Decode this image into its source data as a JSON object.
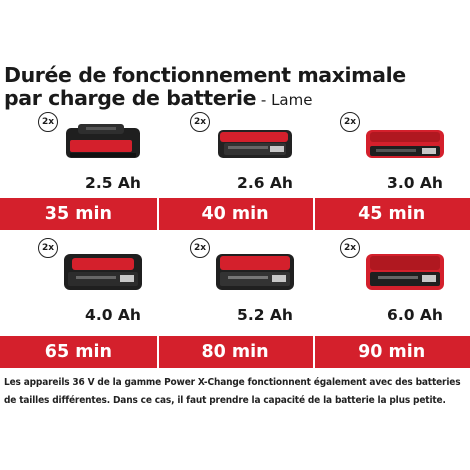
{
  "title": {
    "line1": "Durée de fonctionnement maximale",
    "line2": "par charge de batterie",
    "suffix": " - Lame"
  },
  "colors": {
    "accent": "#d4202c",
    "battery_body": "#222222",
    "battery_accent": "#d4202c"
  },
  "rows": [
    {
      "batteries": [
        {
          "qty": "2x",
          "capacity": "2.5 Ah",
          "icon": "battery-2-5ah-icon"
        },
        {
          "qty": "2x",
          "capacity": "2.6 Ah",
          "icon": "battery-2-6ah-icon"
        },
        {
          "qty": "2x",
          "capacity": "3.0 Ah",
          "icon": "battery-3-0ah-icon"
        }
      ],
      "runtimes": [
        "35 min",
        "40 min",
        "45 min"
      ]
    },
    {
      "batteries": [
        {
          "qty": "2x",
          "capacity": "4.0 Ah",
          "icon": "battery-4-0ah-icon"
        },
        {
          "qty": "2x",
          "capacity": "5.2 Ah",
          "icon": "battery-5-2ah-icon"
        },
        {
          "qty": "2x",
          "capacity": "6.0 Ah",
          "icon": "battery-6-0ah-icon"
        }
      ],
      "runtimes": [
        "65 min",
        "80 min",
        "90 min"
      ]
    }
  ],
  "note": {
    "line1": "Les appareils 36 V de la gamme Power X-Change fonctionnent également avec des batteries",
    "line2": "de tailles différentes. Dans ce cas, il faut prendre la capacité de la batterie la plus petite."
  }
}
